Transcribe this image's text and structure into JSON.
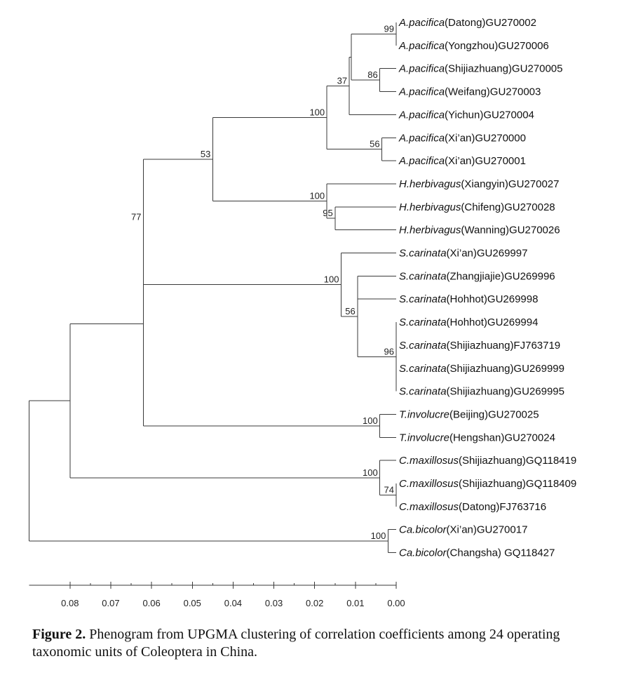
{
  "figure": {
    "caption_label": "Figure 2.",
    "caption_text": "Phenogram from UPGMA clustering of correlation coefficients among 24 operating taxonomic units of Coleoptera in China."
  },
  "tree": {
    "method": "UPGMA",
    "leaves": [
      {
        "genus": "A.pacifica",
        "detail": "(Datong)GU270002"
      },
      {
        "genus": "A.pacifica",
        "detail": "(Yongzhou)GU270006"
      },
      {
        "genus": "A.pacifica",
        "detail": "(Shijiazhuang)GU270005"
      },
      {
        "genus": "A.pacifica",
        "detail": "(Weifang)GU270003"
      },
      {
        "genus": "A.pacifica",
        "detail": "(Yichun)GU270004"
      },
      {
        "genus": "A.pacifica",
        "detail": "(Xi’an)GU270000"
      },
      {
        "genus": "A.pacifica",
        "detail": "(Xi’an)GU270001"
      },
      {
        "genus": "H.herbivagus",
        "detail": "(Xiangyin)GU270027"
      },
      {
        "genus": "H.herbivagus",
        "detail": "(Chifeng)GU270028"
      },
      {
        "genus": "H.herbivagus",
        "detail": "(Wanning)GU270026"
      },
      {
        "genus": "S.carinata",
        "detail": "(Xi’an)GU269997"
      },
      {
        "genus": "S.carinata",
        "detail": "(Zhangjiajie)GU269996"
      },
      {
        "genus": "S.carinata",
        "detail": "(Hohhot)GU269998"
      },
      {
        "genus": "S.carinata",
        "detail": "(Hohhot)GU269994"
      },
      {
        "genus": "S.carinata",
        "detail": "(Shijiazhuang)FJ763719"
      },
      {
        "genus": "S.carinata",
        "detail": "(Shijiazhuang)GU269999"
      },
      {
        "genus": "S.carinata",
        "detail": "(Shijiazhuang)GU269995"
      },
      {
        "genus": "T.involucre",
        "detail": "(Beijing)GU270025"
      },
      {
        "genus": "T.involucre",
        "detail": "(Hengshan)GU270024"
      },
      {
        "genus": "C.maxillosus",
        "detail": "(Shijiazhuang)GQ118419"
      },
      {
        "genus": "C.maxillosus",
        "detail": "(Shijiazhuang)GQ118409"
      },
      {
        "genus": "C.maxillosus",
        "detail": "(Datong)FJ763716"
      },
      {
        "genus": "Ca.bicolor",
        "detail": "(Xi’an)GU270017"
      },
      {
        "genus": "Ca.bicolor",
        "detail": "(Changsha) GQ118427"
      }
    ],
    "nodes": [
      {
        "id": "n_ap01",
        "children": [
          0,
          1
        ],
        "distance": 0.0,
        "support": "99"
      },
      {
        "id": "n_ap23",
        "children": [
          2,
          3
        ],
        "distance": 0.004,
        "support": "86"
      },
      {
        "id": "n_ap0123",
        "children": [
          "n_ap01",
          "n_ap23"
        ],
        "distance": 0.011,
        "support": ""
      },
      {
        "id": "n_ap_a",
        "children": [
          "n_ap0123",
          4
        ],
        "distance": 0.0115,
        "support": "37"
      },
      {
        "id": "n_ap56",
        "children": [
          5,
          6
        ],
        "distance": 0.0035,
        "support": "56"
      },
      {
        "id": "n_ap",
        "children": [
          "n_ap_a",
          "n_ap56"
        ],
        "distance": 0.017,
        "support": "100"
      },
      {
        "id": "n_hh89",
        "children": [
          8,
          9
        ],
        "distance": 0.015,
        "support": "95"
      },
      {
        "id": "n_hh",
        "children": [
          7,
          "n_hh89"
        ],
        "distance": 0.017,
        "support": "100"
      },
      {
        "id": "n_aphh",
        "children": [
          "n_ap",
          "n_hh"
        ],
        "distance": 0.045,
        "support": "53"
      },
      {
        "id": "n_sc1316",
        "children": [
          13,
          14,
          15,
          16
        ],
        "distance": 0.0,
        "support": "96"
      },
      {
        "id": "n_sc_b",
        "children": [
          11,
          12,
          "n_sc1316"
        ],
        "distance": 0.0095,
        "support": "56"
      },
      {
        "id": "n_sc",
        "children": [
          10,
          "n_sc_b"
        ],
        "distance": 0.0135,
        "support": "100"
      },
      {
        "id": "n_main",
        "children": [
          "n_aphh",
          "n_sc"
        ],
        "distance": 0.062,
        "support": "77"
      },
      {
        "id": "n_ti",
        "children": [
          17,
          18
        ],
        "distance": 0.004,
        "support": "100"
      },
      {
        "id": "n_main_ti",
        "children": [
          "n_main",
          "n_ti"
        ],
        "distance": 0.062,
        "support": ""
      },
      {
        "id": "n_cm12",
        "children": [
          20,
          21
        ],
        "distance": 0.0,
        "support": "74"
      },
      {
        "id": "n_cm",
        "children": [
          19,
          "n_cm12"
        ],
        "distance": 0.004,
        "support": "100"
      },
      {
        "id": "n_upper",
        "children": [
          "n_main_ti",
          "n_cm"
        ],
        "distance": 0.08,
        "support": ""
      },
      {
        "id": "n_cb",
        "children": [
          22,
          23
        ],
        "distance": 0.002,
        "support": "100"
      },
      {
        "id": "n_root",
        "children": [
          "n_upper",
          "n_cb"
        ],
        "distance": 0.09,
        "support": ""
      }
    ],
    "axis": {
      "min": 0.0,
      "max": 0.09,
      "tick_labels": [
        "0.08",
        "0.07",
        "0.06",
        "0.05",
        "0.04",
        "0.03",
        "0.02",
        "0.01",
        "0.00"
      ],
      "tick_values": [
        0.08,
        0.07,
        0.06,
        0.05,
        0.04,
        0.03,
        0.02,
        0.01,
        0.0
      ]
    }
  }
}
